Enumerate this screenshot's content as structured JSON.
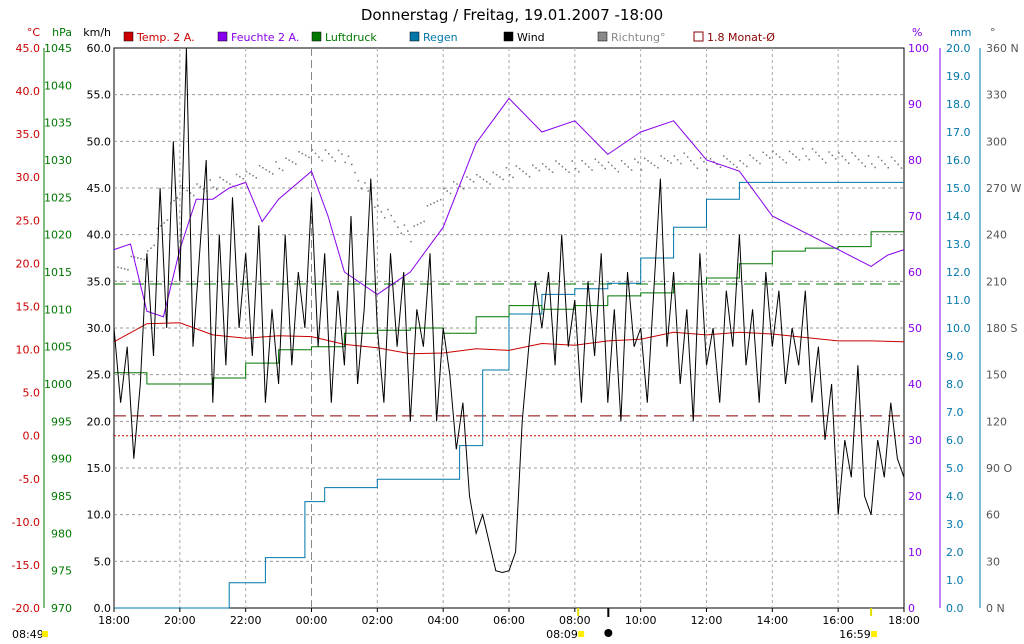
{
  "chart_data": {
    "type": "line",
    "title": "Donnerstag / Freitag, 19.01.2007  -18:00",
    "x_ticks": [
      "18:00",
      "20:00",
      "22:00",
      "00:00",
      "02:00",
      "04:00",
      "06:00",
      "08:00",
      "10:00",
      "12:00",
      "14:00",
      "16:00",
      "18:00"
    ],
    "x_range": [
      "18:00",
      "18:00 (+24h)"
    ],
    "legend": [
      {
        "label": "Temp. 2 A.",
        "color": "#cc0000"
      },
      {
        "label": "Feuchte 2 A.",
        "color": "#8800ee"
      },
      {
        "label": "Luftdruck",
        "color": "#007700"
      },
      {
        "label": "Regen",
        "color": "#0077aa"
      },
      {
        "label": "Wind",
        "color": "#000000"
      },
      {
        "label": "Richtung°",
        "color": "#888888"
      },
      {
        "label": "1.8 Monat-Ø",
        "color": "#880000"
      }
    ],
    "axes": {
      "temp": {
        "unit": "°C",
        "color": "#cc0000",
        "ticks": [
          "45.0",
          "40.0",
          "35.0",
          "30.0",
          "25.0",
          "20.0",
          "15.0",
          "10.0",
          "5.0",
          "0.0",
          "-5.0",
          "-10.0",
          "-15.0",
          "-20.0"
        ],
        "range": [
          -20,
          45
        ]
      },
      "pressure": {
        "unit": "hPa",
        "color": "#007700",
        "ticks": [
          "1045",
          "1040",
          "1035",
          "1030",
          "1025",
          "1020",
          "1015",
          "1010",
          "1005",
          "1000",
          "995",
          "990",
          "985",
          "980",
          "975",
          "970"
        ],
        "range": [
          970,
          1045
        ]
      },
      "wind": {
        "unit": "km/h",
        "color": "#000000",
        "ticks": [
          "60.0",
          "55.0",
          "50.0",
          "45.0",
          "40.0",
          "35.0",
          "30.0",
          "25.0",
          "20.0",
          "15.0",
          "10.0",
          "5.0",
          "0.0"
        ],
        "range": [
          0,
          60
        ]
      },
      "humidity": {
        "unit": "%",
        "color": "#8800ee",
        "ticks": [
          "100",
          "90",
          "80",
          "70",
          "60",
          "50",
          "40",
          "30",
          "20",
          "10",
          "0"
        ],
        "range": [
          0,
          100
        ]
      },
      "rain": {
        "unit": "mm",
        "color": "#0077aa",
        "ticks": [
          "20.0",
          "19.0",
          "18.0",
          "17.0",
          "16.0",
          "15.0",
          "14.0",
          "13.0",
          "12.0",
          "11.0",
          "10.0",
          "9.0",
          "8.0",
          "7.0",
          "6.0",
          "5.0",
          "4.0",
          "3.0",
          "2.0",
          "1.0",
          "0.0"
        ],
        "range": [
          0,
          20
        ]
      },
      "direction": {
        "unit": "°",
        "color": "#555555",
        "ticks": [
          "360 N",
          "330",
          "300",
          "270 W",
          "240",
          "210",
          "180 S",
          "150",
          "120",
          "90 O",
          "60",
          "30",
          "0 N"
        ],
        "range": [
          0,
          360
        ]
      }
    },
    "events": [
      {
        "label": "08:49",
        "hour": 0
      },
      {
        "label": "08:09",
        "hour": 14.1
      },
      {
        "label": "16:59",
        "hour": 23.0
      }
    ],
    "reference_lines": {
      "temp_monthly_avg": 0.7,
      "pressure_avg": 1013.4,
      "temp_zero": 0.0
    },
    "series": {
      "temp": [
        [
          0,
          10.9
        ],
        [
          1,
          13.0
        ],
        [
          2,
          13.1
        ],
        [
          3,
          11.7
        ],
        [
          4,
          11.3
        ],
        [
          5,
          11.6
        ],
        [
          6,
          11.5
        ],
        [
          7,
          10.6
        ],
        [
          8,
          10.2
        ],
        [
          9,
          9.5
        ],
        [
          10,
          9.6
        ],
        [
          11,
          10.1
        ],
        [
          12,
          9.9
        ],
        [
          13,
          10.7
        ],
        [
          14,
          10.5
        ],
        [
          15,
          11.0
        ],
        [
          16,
          11.2
        ],
        [
          17,
          12.0
        ],
        [
          18,
          11.7
        ],
        [
          19,
          12.0
        ],
        [
          20,
          11.8
        ],
        [
          21,
          11.4
        ],
        [
          22,
          11.0
        ],
        [
          23,
          11.0
        ],
        [
          24,
          10.9
        ]
      ],
      "humidity": [
        [
          0,
          64
        ],
        [
          0.5,
          65
        ],
        [
          1,
          53
        ],
        [
          1.5,
          52
        ],
        [
          2,
          64
        ],
        [
          2.5,
          73
        ],
        [
          3,
          73
        ],
        [
          3.5,
          75
        ],
        [
          4,
          76
        ],
        [
          4.5,
          69
        ],
        [
          5,
          73
        ],
        [
          6,
          78
        ],
        [
          6.5,
          70
        ],
        [
          7,
          60
        ],
        [
          8,
          56
        ],
        [
          9,
          60
        ],
        [
          10,
          68
        ],
        [
          11,
          83
        ],
        [
          12,
          91
        ],
        [
          13,
          85
        ],
        [
          14,
          87
        ],
        [
          15,
          81
        ],
        [
          16,
          85
        ],
        [
          17,
          87
        ],
        [
          18,
          80
        ],
        [
          19,
          78
        ],
        [
          20,
          70
        ],
        [
          21,
          67
        ],
        [
          22,
          64
        ],
        [
          23,
          61
        ],
        [
          23.5,
          63
        ],
        [
          24,
          64
        ]
      ],
      "pressure": [
        [
          0,
          1001.5
        ],
        [
          1,
          1000
        ],
        [
          2,
          1000
        ],
        [
          3,
          1000.8
        ],
        [
          4,
          1002.8
        ],
        [
          5,
          1004.6
        ],
        [
          6,
          1005.0
        ],
        [
          7,
          1006.8
        ],
        [
          8,
          1007.2
        ],
        [
          9,
          1007.5
        ],
        [
          10,
          1006.8
        ],
        [
          11,
          1009.0
        ],
        [
          12,
          1010.5
        ],
        [
          13,
          1010.0
        ],
        [
          14,
          1010.5
        ],
        [
          15,
          1011.8
        ],
        [
          16,
          1012.2
        ],
        [
          17,
          1013.4
        ],
        [
          18,
          1014.2
        ],
        [
          19,
          1016.1
        ],
        [
          20,
          1017.8
        ],
        [
          21,
          1018.2
        ],
        [
          22,
          1018.4
        ],
        [
          23,
          1020.4
        ],
        [
          24,
          1020.4
        ]
      ],
      "rain": [
        [
          0,
          0
        ],
        [
          2.8,
          0
        ],
        [
          3.5,
          0.9
        ],
        [
          4.6,
          1.8
        ],
        [
          5.8,
          3.8
        ],
        [
          6.4,
          4.3
        ],
        [
          8,
          4.6
        ],
        [
          9.5,
          4.6
        ],
        [
          10.5,
          5.8
        ],
        [
          11.2,
          8.5
        ],
        [
          12,
          10.5
        ],
        [
          13,
          11.2
        ],
        [
          14,
          11.4
        ],
        [
          15,
          11.6
        ],
        [
          16,
          12.5
        ],
        [
          17,
          13.6
        ],
        [
          18,
          14.6
        ],
        [
          19,
          15.2
        ],
        [
          20,
          15.2
        ],
        [
          24,
          15.2
        ]
      ],
      "direction": [
        [
          0,
          215
        ],
        [
          1,
          230
        ],
        [
          2,
          268
        ],
        [
          3,
          272
        ],
        [
          4,
          278
        ],
        [
          5,
          285
        ],
        [
          6,
          293
        ],
        [
          7,
          290
        ],
        [
          8,
          258
        ],
        [
          9,
          240
        ],
        [
          10,
          270
        ],
        [
          11,
          275
        ],
        [
          12,
          280
        ],
        [
          13,
          283
        ],
        [
          14,
          285
        ],
        [
          15,
          285
        ],
        [
          16,
          285
        ],
        [
          17,
          290
        ],
        [
          18,
          286
        ],
        [
          19,
          288
        ],
        [
          20,
          290
        ],
        [
          21,
          292
        ],
        [
          22,
          290
        ],
        [
          23,
          288
        ],
        [
          24,
          285
        ]
      ],
      "wind": [
        [
          0,
          30
        ],
        [
          0.2,
          22
        ],
        [
          0.4,
          28
        ],
        [
          0.6,
          16
        ],
        [
          0.8,
          24
        ],
        [
          1.0,
          38
        ],
        [
          1.2,
          27
        ],
        [
          1.4,
          45
        ],
        [
          1.6,
          30
        ],
        [
          1.8,
          50
        ],
        [
          2.0,
          35
        ],
        [
          2.2,
          60
        ],
        [
          2.4,
          28
        ],
        [
          2.6,
          38
        ],
        [
          2.8,
          48
        ],
        [
          3.0,
          22
        ],
        [
          3.2,
          40
        ],
        [
          3.4,
          26
        ],
        [
          3.6,
          44
        ],
        [
          3.8,
          30
        ],
        [
          4.0,
          38
        ],
        [
          4.2,
          27
        ],
        [
          4.4,
          41
        ],
        [
          4.6,
          22
        ],
        [
          4.8,
          32
        ],
        [
          5.0,
          24
        ],
        [
          5.2,
          40
        ],
        [
          5.4,
          26
        ],
        [
          5.6,
          36
        ],
        [
          5.8,
          30
        ],
        [
          6.0,
          44
        ],
        [
          6.2,
          28
        ],
        [
          6.4,
          38
        ],
        [
          6.6,
          22
        ],
        [
          6.8,
          34
        ],
        [
          7.0,
          26
        ],
        [
          7.2,
          42
        ],
        [
          7.4,
          24
        ],
        [
          7.6,
          32
        ],
        [
          7.8,
          46
        ],
        [
          8.0,
          30
        ],
        [
          8.2,
          22
        ],
        [
          8.4,
          38
        ],
        [
          8.6,
          28
        ],
        [
          8.8,
          36
        ],
        [
          9.0,
          20
        ],
        [
          9.2,
          32
        ],
        [
          9.4,
          28
        ],
        [
          9.6,
          38
        ],
        [
          9.8,
          20
        ],
        [
          10.0,
          30
        ],
        [
          10.2,
          25
        ],
        [
          10.4,
          17
        ],
        [
          10.6,
          22
        ],
        [
          10.8,
          12
        ],
        [
          11.0,
          8
        ],
        [
          11.2,
          10
        ],
        [
          11.4,
          7
        ],
        [
          11.6,
          4
        ],
        [
          11.8,
          3.8
        ],
        [
          12.0,
          4
        ],
        [
          12.2,
          6
        ],
        [
          12.4,
          20
        ],
        [
          12.6,
          28
        ],
        [
          12.8,
          35
        ],
        [
          13.0,
          30
        ],
        [
          13.2,
          36
        ],
        [
          13.4,
          26
        ],
        [
          13.6,
          40
        ],
        [
          13.8,
          28
        ],
        [
          14.0,
          33
        ],
        [
          14.2,
          22
        ],
        [
          14.4,
          35
        ],
        [
          14.6,
          27
        ],
        [
          14.8,
          38
        ],
        [
          15.0,
          22
        ],
        [
          15.2,
          32
        ],
        [
          15.4,
          20
        ],
        [
          15.6,
          36
        ],
        [
          15.8,
          28
        ],
        [
          16.0,
          30
        ],
        [
          16.2,
          22
        ],
        [
          16.4,
          34
        ],
        [
          16.6,
          46
        ],
        [
          16.8,
          28
        ],
        [
          17.0,
          36
        ],
        [
          17.2,
          24
        ],
        [
          17.4,
          32
        ],
        [
          17.6,
          20
        ],
        [
          17.8,
          38
        ],
        [
          18.0,
          26
        ],
        [
          18.2,
          30
        ],
        [
          18.4,
          22
        ],
        [
          18.6,
          34
        ],
        [
          18.8,
          28
        ],
        [
          19.0,
          40
        ],
        [
          19.2,
          26
        ],
        [
          19.4,
          32
        ],
        [
          19.6,
          22
        ],
        [
          19.8,
          36
        ],
        [
          20.0,
          28
        ],
        [
          20.2,
          34
        ],
        [
          20.4,
          24
        ],
        [
          20.6,
          30
        ],
        [
          20.8,
          26
        ],
        [
          21.0,
          34
        ],
        [
          21.2,
          22
        ],
        [
          21.4,
          28
        ],
        [
          21.6,
          18
        ],
        [
          21.8,
          24
        ],
        [
          22.0,
          10
        ],
        [
          22.2,
          18
        ],
        [
          22.4,
          14
        ],
        [
          22.6,
          26
        ],
        [
          22.8,
          12
        ],
        [
          23.0,
          10
        ],
        [
          23.2,
          18
        ],
        [
          23.4,
          14
        ],
        [
          23.6,
          22
        ],
        [
          23.8,
          16
        ],
        [
          24.0,
          14
        ]
      ]
    }
  }
}
